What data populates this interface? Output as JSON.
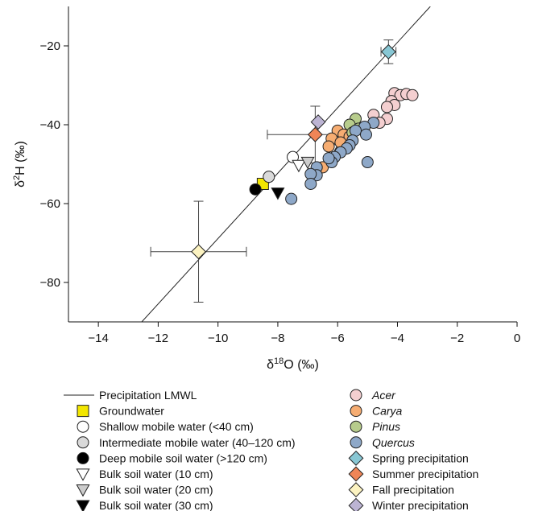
{
  "chart_data": {
    "type": "scatter",
    "xlabel": {
      "prefix": "δ",
      "sup": "18",
      "suffix": "O (‰)"
    },
    "ylabel": {
      "prefix": "δ",
      "sup": "2",
      "suffix": "H (‰)"
    },
    "xlim": [
      -15,
      0
    ],
    "ylim": [
      -90,
      -10
    ],
    "xticks": [
      -14,
      -12,
      -10,
      -8,
      -6,
      -4,
      -2,
      0
    ],
    "xtick_labels": [
      "−14",
      "−12",
      "−10",
      "−8",
      "−6",
      "−4",
      "−2",
      "0"
    ],
    "yticks": [
      -20,
      -40,
      -60,
      -80
    ],
    "ytick_labels": [
      "−20",
      "−40",
      "−60",
      "−80"
    ],
    "grid": false,
    "legend_position": "below plot, two columns",
    "lmwl": {
      "name": "Precipitation LMWL",
      "x": [
        -12.55,
        -2.9
      ],
      "y": [
        -90,
        -10
      ]
    },
    "series": [
      {
        "name": "Groundwater",
        "marker": "square",
        "color": "#f2e600",
        "points": [
          [
            -8.5,
            -55
          ]
        ]
      },
      {
        "name": "Shallow mobile water (<40 cm)",
        "marker": "circle",
        "color": "#ffffff",
        "points": [
          [
            -7.5,
            -48.2
          ]
        ]
      },
      {
        "name": "Intermediate mobile water (40–120 cm)",
        "marker": "circle",
        "color": "#d9d9d9",
        "points": [
          [
            -8.3,
            -53.2
          ]
        ]
      },
      {
        "name": "Deep mobile soil water (>120 cm)",
        "marker": "circle",
        "color": "#000000",
        "points": [
          [
            -8.75,
            -56.4
          ]
        ]
      },
      {
        "name": "Bulk soil water (10 cm)",
        "marker": "triangle-down",
        "color": "#ffffff",
        "points": [
          [
            -7.3,
            -50.3
          ],
          [
            -6.2,
            -46.3
          ]
        ]
      },
      {
        "name": "Bulk soil water (20 cm)",
        "marker": "triangle-down",
        "color": "#cccccc",
        "points": [
          [
            -7.0,
            -49.5
          ]
        ]
      },
      {
        "name": "Bulk soil water (30 cm)",
        "marker": "triangle-down",
        "color": "#000000",
        "points": [
          [
            -8.0,
            -57.3
          ]
        ]
      },
      {
        "name": "Acer",
        "italic": true,
        "marker": "circle",
        "color": "#f4cfd0",
        "points": [
          [
            -4.1,
            -32
          ],
          [
            -3.9,
            -32.5
          ],
          [
            -3.7,
            -32.2
          ],
          [
            -3.5,
            -32.5
          ],
          [
            -4.2,
            -34
          ],
          [
            -4.1,
            -35
          ],
          [
            -4.35,
            -35.5
          ],
          [
            -4.8,
            -37.5
          ],
          [
            -4.35,
            -38.5
          ],
          [
            -4.6,
            -39.5
          ]
        ]
      },
      {
        "name": "Carya",
        "italic": true,
        "marker": "circle",
        "color": "#f6ad72",
        "points": [
          [
            -6.0,
            -41.5
          ],
          [
            -5.8,
            -42.5
          ],
          [
            -6.2,
            -43.5
          ],
          [
            -5.6,
            -43
          ],
          [
            -5.9,
            -44.5
          ],
          [
            -6.3,
            -45.5
          ],
          [
            -6.5,
            -50.8
          ]
        ]
      },
      {
        "name": "Pinus",
        "italic": true,
        "marker": "circle",
        "color": "#b7cc8c",
        "points": [
          [
            -5.4,
            -38.5
          ],
          [
            -5.6,
            -40
          ],
          [
            -5.5,
            -42
          ],
          [
            -5.3,
            -41
          ]
        ]
      },
      {
        "name": "Quercus",
        "italic": true,
        "marker": "circle",
        "color": "#8ea8c8",
        "points": [
          [
            -4.8,
            -39.5
          ],
          [
            -5.1,
            -40.5
          ],
          [
            -5.4,
            -41.5
          ],
          [
            -5.05,
            -42.5
          ],
          [
            -5.5,
            -44
          ],
          [
            -5.6,
            -45.2
          ],
          [
            -5.7,
            -46
          ],
          [
            -5.9,
            -47
          ],
          [
            -6.1,
            -48.2
          ],
          [
            -6.2,
            -49.5
          ],
          [
            -6.3,
            -48.5
          ],
          [
            -6.7,
            -50.8
          ],
          [
            -6.7,
            -52.8
          ],
          [
            -6.9,
            -52.5
          ],
          [
            -6.9,
            -55
          ],
          [
            -7.55,
            -58.8
          ],
          [
            -5.0,
            -49.5
          ]
        ]
      },
      {
        "name": "Spring precipitation",
        "marker": "diamond",
        "color": "#88c7d4",
        "points": [
          [
            -4.3,
            -21.5
          ]
        ],
        "errors": [
          {
            "xerr": 0.25,
            "yerr": 3
          }
        ]
      },
      {
        "name": "Summer precipitation",
        "marker": "diamond",
        "color": "#ef8557",
        "points": [
          [
            -6.75,
            -42.5
          ]
        ],
        "errors": [
          {
            "xerr": 1.6,
            "yerr": 7.2
          }
        ]
      },
      {
        "name": "Fall precipitation",
        "marker": "diamond",
        "color": "#fcf3c1",
        "points": [
          [
            -10.65,
            -72.2
          ]
        ],
        "errors": [
          {
            "xerr": 1.6,
            "yerr": 12.8
          }
        ]
      },
      {
        "name": "Winter precipitation",
        "marker": "diamond",
        "color": "#bcb4d3",
        "points": [
          [
            -6.65,
            -39.3
          ]
        ]
      }
    ],
    "legend_left": [
      "Precipitation LMWL",
      "Groundwater",
      "Shallow mobile water (<40 cm)",
      "Intermediate mobile water (40–120 cm)",
      "Deep mobile soil water (>120 cm)",
      "Bulk soil water (10 cm)",
      "Bulk soil water (20 cm)",
      "Bulk soil water (30 cm)"
    ],
    "legend_right": [
      "Acer",
      "Carya",
      "Pinus",
      "Quercus",
      "Spring precipitation",
      "Summer precipitation",
      "Fall precipitation",
      "Winter precipitation"
    ]
  }
}
